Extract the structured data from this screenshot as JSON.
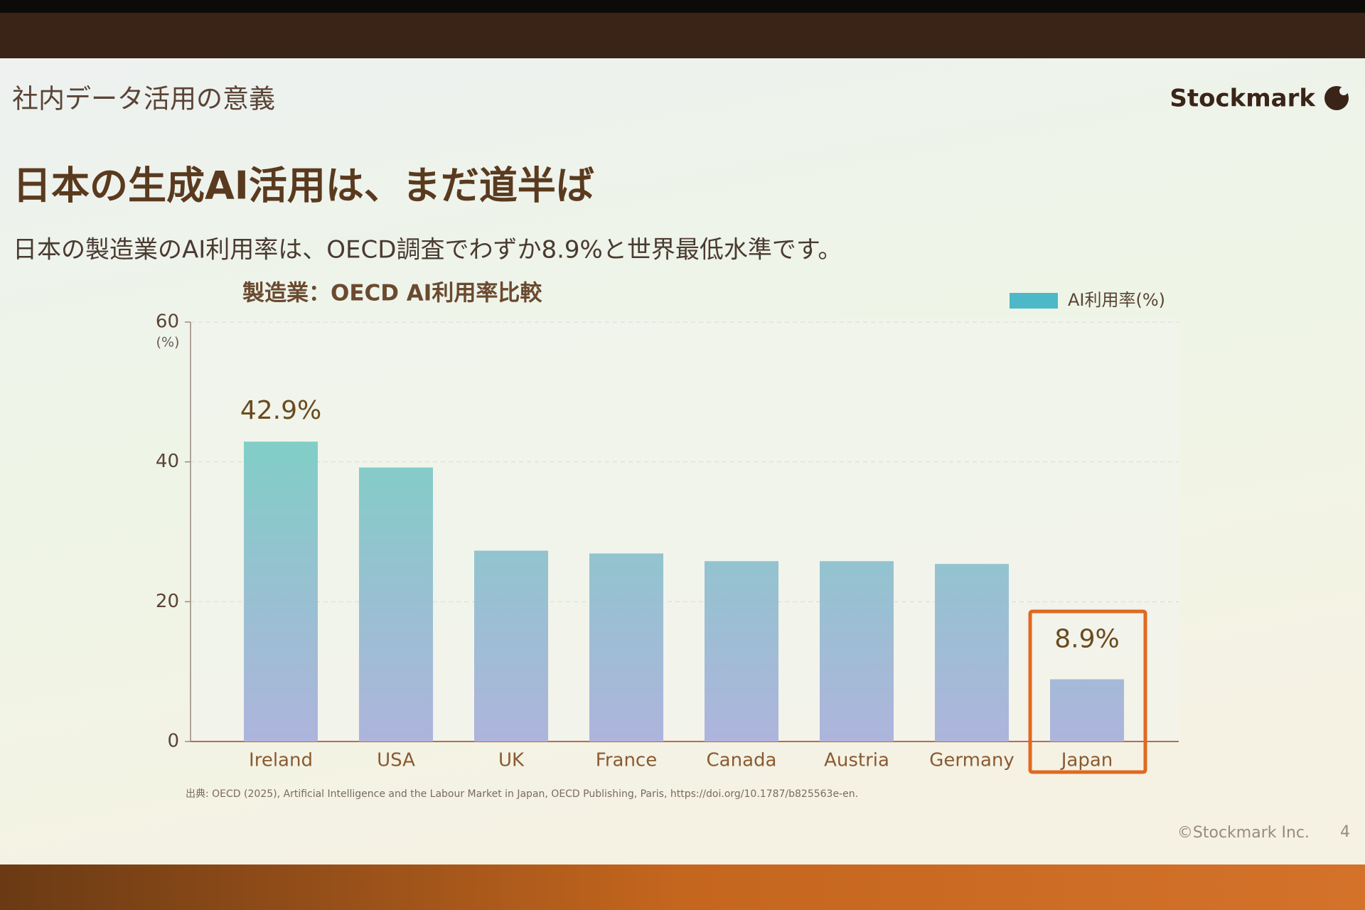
{
  "header": {
    "section": "社内データ活用の意義",
    "logo": "Stockmark",
    "title": "日本の生成AI活用は、まだ道半ば",
    "subtitle": "日本の製造業のAI利用率は、OECD調査でわずか8.9%と世界最低水準です。"
  },
  "chart_data": {
    "type": "bar",
    "title": "製造業：OECD AI利用率比較",
    "categories": [
      "Ireland",
      "USA",
      "UK",
      "France",
      "Canada",
      "Austria",
      "Germany",
      "Japan"
    ],
    "series": [
      {
        "name": "AI利用率(%)",
        "color": "#7fcfc6",
        "values": [
          42.9,
          39.2,
          27.3,
          26.9,
          25.8,
          25.8,
          25.4,
          8.9
        ],
        "value_labels": [
          "42.9%",
          null,
          null,
          null,
          null,
          null,
          null,
          "8.9%"
        ]
      }
    ],
    "ylim": [
      0,
      60
    ],
    "yticks": [
      0,
      20,
      40,
      60
    ],
    "y_unit": "(%)",
    "grid": true,
    "legend": "top-right",
    "highlight": "Japan",
    "source": "出典: OECD (2025), Artificial Intelligence and the Labour Market in Japan, OECD Publishing, Paris, https://doi.org/10.1787/b825563e-en."
  },
  "footer": {
    "copyright": "©Stockmark Inc.",
    "page": "4"
  }
}
